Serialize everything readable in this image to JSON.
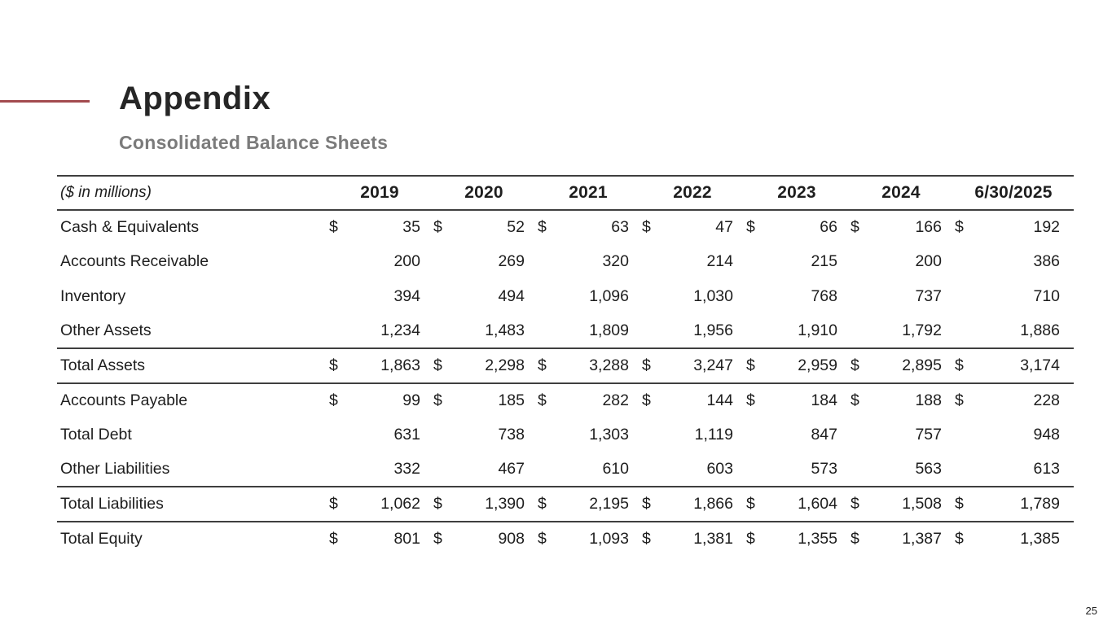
{
  "slide": {
    "title": "Appendix",
    "subtitle": "Consolidated Balance Sheets",
    "page_number": "25",
    "accent_color": "#A34A4E"
  },
  "table": {
    "unit_label": "($ in millions)",
    "columns": [
      "2019",
      "2020",
      "2021",
      "2022",
      "2023",
      "2024",
      "6/30/2025"
    ],
    "currency_symbol": "$",
    "rows": [
      {
        "label": "Cash & Equivalents",
        "dollar": true,
        "total": false,
        "values": [
          "35",
          "52",
          "63",
          "47",
          "66",
          "166",
          "192"
        ]
      },
      {
        "label": "Accounts Receivable",
        "dollar": false,
        "total": false,
        "values": [
          "200",
          "269",
          "320",
          "214",
          "215",
          "200",
          "386"
        ]
      },
      {
        "label": "Inventory",
        "dollar": false,
        "total": false,
        "values": [
          "394",
          "494",
          "1,096",
          "1,030",
          "768",
          "737",
          "710"
        ]
      },
      {
        "label": "Other Assets",
        "dollar": false,
        "total": false,
        "values": [
          "1,234",
          "1,483",
          "1,809",
          "1,956",
          "1,910",
          "1,792",
          "1,886"
        ]
      },
      {
        "label": "Total Assets",
        "dollar": true,
        "total": true,
        "values": [
          "1,863",
          "2,298",
          "3,288",
          "3,247",
          "2,959",
          "2,895",
          "3,174"
        ]
      },
      {
        "label": "Accounts Payable",
        "dollar": true,
        "total": false,
        "values": [
          "99",
          "185",
          "282",
          "144",
          "184",
          "188",
          "228"
        ]
      },
      {
        "label": "Total Debt",
        "dollar": false,
        "total": false,
        "values": [
          "631",
          "738",
          "1,303",
          "1,119",
          "847",
          "757",
          "948"
        ]
      },
      {
        "label": "Other Liabilities",
        "dollar": false,
        "total": false,
        "values": [
          "332",
          "467",
          "610",
          "603",
          "573",
          "563",
          "613"
        ]
      },
      {
        "label": "Total Liabilities",
        "dollar": true,
        "total": true,
        "values": [
          "1,062",
          "1,390",
          "2,195",
          "1,866",
          "1,604",
          "1,508",
          "1,789"
        ]
      },
      {
        "label": "Total Equity",
        "dollar": true,
        "total": false,
        "values": [
          "801",
          "908",
          "1,093",
          "1,381",
          "1,355",
          "1,387",
          "1,385"
        ]
      }
    ]
  }
}
